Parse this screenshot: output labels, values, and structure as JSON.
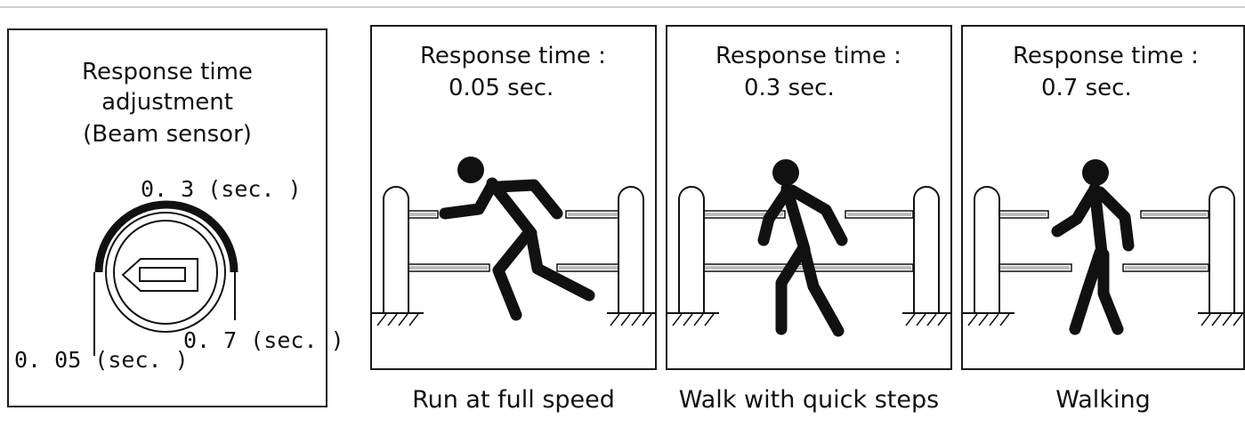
{
  "left_panel": {
    "title_line1": "Response time",
    "title_line2": "adjustment",
    "title_line3": "(Beam sensor)",
    "label_mid": "0. 3 (sec. )",
    "label_low": "0. 05 (sec. )",
    "label_high": "0. 7 (sec. )"
  },
  "panels": [
    {
      "heading": "Response time :",
      "value": "0.05 sec.",
      "caption": "Run at full speed"
    },
    {
      "heading": "Response time :",
      "value": "0.3 sec.",
      "caption": "Walk with quick steps"
    },
    {
      "heading": "Response time :",
      "value": "0.7 sec.",
      "caption": "Walking"
    }
  ],
  "colors": {
    "ink": "#111111",
    "beam": "#bdbdbd",
    "frame": "#1a1a1a"
  }
}
